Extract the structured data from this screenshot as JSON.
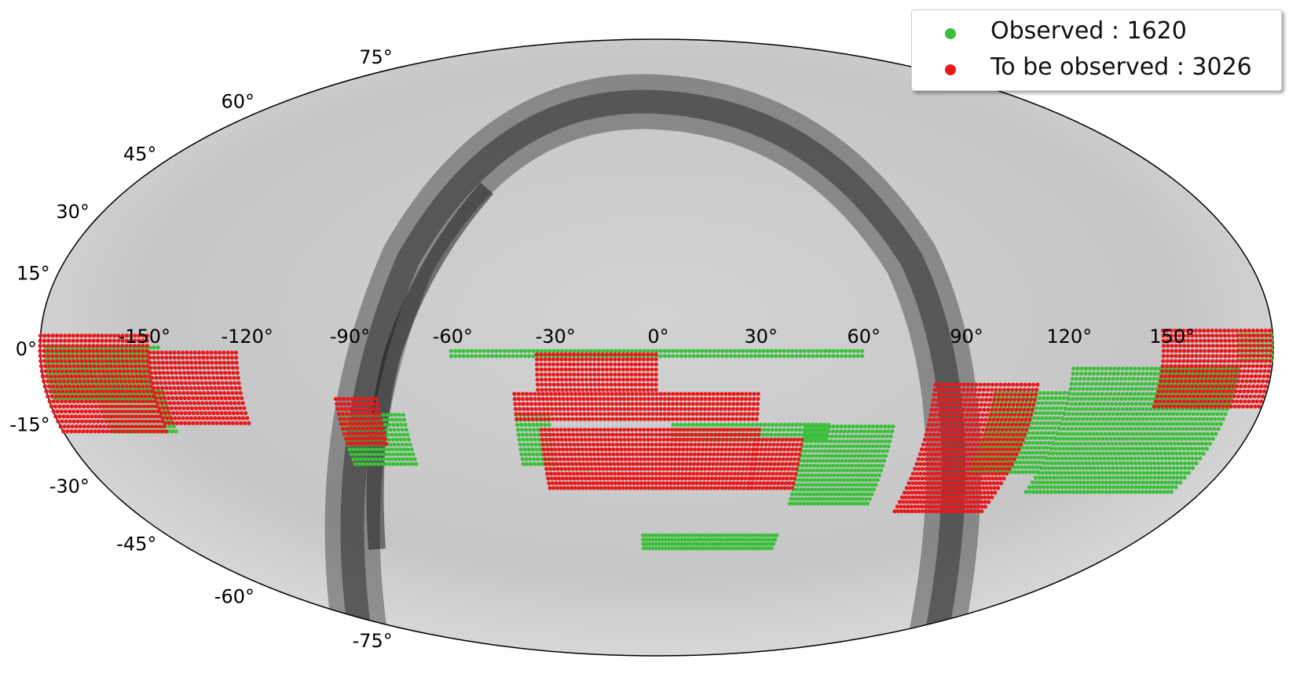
{
  "chart_data": {
    "type": "scatter",
    "projection": "mollweide",
    "background": "grayscale sky dust map",
    "grid": false,
    "legend_position": "top-right",
    "lon_ticks": [
      "-150°",
      "-120°",
      "-90°",
      "-60°",
      "-30°",
      "0°",
      "30°",
      "60°",
      "90°",
      "120°",
      "150°"
    ],
    "lon_tick_values": [
      -150,
      -120,
      -90,
      -60,
      -30,
      0,
      30,
      60,
      90,
      120,
      150
    ],
    "lat_ticks": [
      "75°",
      "60°",
      "45°",
      "30°",
      "15°",
      "0°",
      "-15°",
      "-30°",
      "-45°",
      "-60°",
      "-75°"
    ],
    "lat_tick_values": [
      75,
      60,
      45,
      30,
      15,
      0,
      -15,
      -30,
      -45,
      -60,
      -75
    ],
    "series": [
      {
        "name": "Observed",
        "label": "Observed :  1620",
        "count": "1620",
        "color": "#3cbf3c",
        "regions": [
          {
            "lon": [
              -60,
              60
            ],
            "lat": [
              -2,
              0
            ]
          },
          {
            "lon": [
              -178,
              -145
            ],
            "lat": [
              -12,
              0
            ]
          },
          {
            "lon": [
              -165,
              -145
            ],
            "lat": [
              -20,
              -10
            ]
          },
          {
            "lon": [
              -95,
              -75
            ],
            "lat": [
              -28,
              -15
            ]
          },
          {
            "lon": [
              -42,
              -32
            ],
            "lat": [
              -28,
              -15
            ]
          },
          {
            "lon": [
              5,
              52
            ],
            "lat": [
              -22,
              -18
            ]
          },
          {
            "lon": [
              45,
              72
            ],
            "lat": [
              -38,
              -18
            ]
          },
          {
            "lon": [
              -5,
              45
            ],
            "lat": [
              -50,
              -46
            ]
          },
          {
            "lon": [
              100,
              122
            ],
            "lat": [
              -30,
              -10
            ]
          },
          {
            "lon": [
              122,
              170
            ],
            "lat": [
              -35,
              -5
            ]
          },
          {
            "lon": [
              170,
              180
            ],
            "lat": [
              -3,
              3
            ]
          }
        ]
      },
      {
        "name": "To be observed",
        "label": "To be observed :  3026",
        "count": "3026",
        "color": "#e8191c",
        "regions": [
          {
            "lon": [
              -180,
              -148
            ],
            "lat": [
              -20,
              3
            ]
          },
          {
            "lon": [
              -148,
              -122
            ],
            "lat": [
              -18,
              -1
            ]
          },
          {
            "lon": [
              -95,
              -82
            ],
            "lat": [
              -23,
              -12
            ]
          },
          {
            "lon": [
              -35,
              0
            ],
            "lat": [
              -10,
              -1
            ]
          },
          {
            "lon": [
              -42,
              30
            ],
            "lat": [
              -17,
              -10
            ]
          },
          {
            "lon": [
              -35,
              32
            ],
            "lat": [
              -34,
              -19
            ]
          },
          {
            "lon": [
              30,
              45
            ],
            "lat": [
              -34,
              -22
            ]
          },
          {
            "lon": [
              82,
              112
            ],
            "lat": [
              -40,
              -8
            ]
          },
          {
            "lon": [
              148,
              180
            ],
            "lat": [
              -14,
              4
            ]
          }
        ]
      }
    ]
  },
  "legend": {
    "observed_label": "Observed :  1620",
    "to_be_observed_label": "To be observed :  3026"
  }
}
